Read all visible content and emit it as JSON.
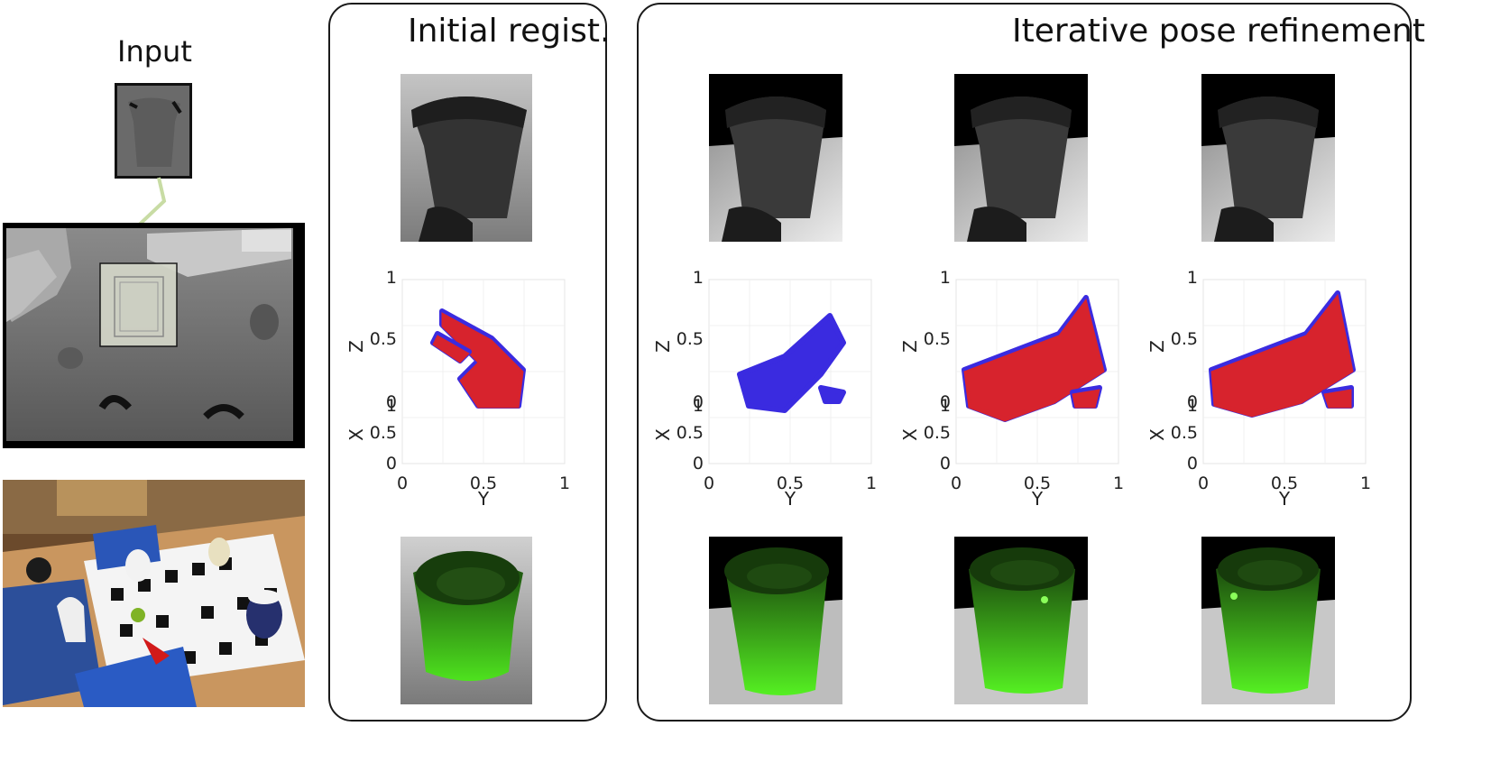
{
  "input": {
    "title": "Input"
  },
  "panels": [
    {
      "title": "Initial regist."
    },
    {
      "title": "Iterative pose refinement"
    }
  ],
  "plot": {
    "xlabel": "Y",
    "ylabel_z": "Z",
    "ylabel_x": "X",
    "x_ticks": [
      "0",
      "0.5",
      "1"
    ],
    "z_ticks": [
      "1",
      "0.5",
      "0"
    ],
    "x_side_ticks": [
      "1",
      "0.5",
      "0"
    ]
  },
  "colors": {
    "model_points": "#e8231a",
    "scene_points": "#3a2be0",
    "render": "#3fd11a"
  },
  "chart_data": [
    {
      "type": "scatter",
      "title": "",
      "xlabel": "Y",
      "ylabel": "Z / X",
      "xlim": [
        0,
        1
      ],
      "ylim": [
        0,
        1
      ],
      "series": [],
      "x_ticks": [
        0,
        0.5,
        1
      ],
      "y_ticks": [
        0,
        0.5,
        1
      ]
    },
    {
      "type": "scatter",
      "title": "",
      "xlabel": "Y",
      "ylabel": "Z / X",
      "xlim": [
        0,
        1
      ],
      "ylim": [
        0,
        1
      ],
      "series": [],
      "x_ticks": [
        0,
        0.5,
        1
      ],
      "y_ticks": [
        0,
        0.5,
        1
      ]
    },
    {
      "type": "scatter",
      "title": "",
      "xlabel": "Y",
      "ylabel": "Z / X",
      "xlim": [
        0,
        1
      ],
      "ylim": [
        0,
        1
      ],
      "series": [],
      "x_ticks": [
        0,
        0.5,
        1
      ],
      "y_ticks": [
        0,
        0.5,
        1
      ]
    },
    {
      "type": "scatter",
      "title": "",
      "xlabel": "Y",
      "ylabel": "Z / X",
      "xlim": [
        0,
        1
      ],
      "ylim": [
        0,
        1
      ],
      "series": [],
      "x_ticks": [
        0,
        0.5,
        1
      ],
      "y_ticks": [
        0,
        0.5,
        1
      ]
    }
  ]
}
